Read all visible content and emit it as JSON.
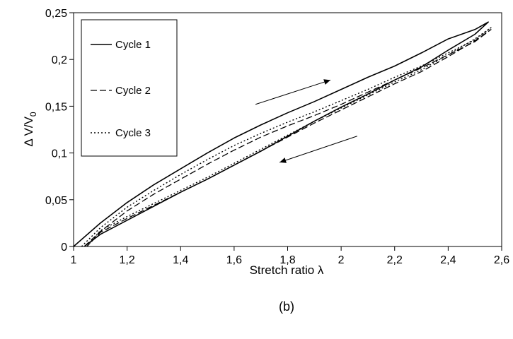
{
  "chart_data": {
    "type": "line",
    "title": "",
    "panel_label": "(b)",
    "xlabel": "Stretch ratio λ",
    "ylabel_main": "Δ V/V",
    "ylabel_sub": "0",
    "xlim": [
      1,
      2.6
    ],
    "ylim": [
      0,
      0.25
    ],
    "x_ticks": [
      1,
      1.2,
      1.4,
      1.6,
      1.8,
      2,
      2.2,
      2.4,
      2.6
    ],
    "x_tick_labels": [
      "1",
      "1,2",
      "1,4",
      "1,6",
      "1,8",
      "2",
      "2,2",
      "2,4",
      "2,6"
    ],
    "y_ticks": [
      0,
      0.05,
      0.1,
      0.15,
      0.2,
      0.25
    ],
    "y_tick_labels": [
      "0",
      "0,05",
      "0,1",
      "0,15",
      "0,2",
      "0,25"
    ],
    "grid": false,
    "legend_position": "top-left",
    "series": [
      {
        "name": "Cycle 1",
        "dash": "solid",
        "color": "#000000",
        "x": [
          1.0,
          1.1,
          1.2,
          1.3,
          1.4,
          1.5,
          1.6,
          1.7,
          1.8,
          1.9,
          2.0,
          2.1,
          2.2,
          2.3,
          2.4,
          2.5,
          2.55,
          2.5,
          2.4,
          2.3,
          2.2,
          2.1,
          2.0,
          1.9,
          1.8,
          1.7,
          1.6,
          1.5,
          1.4,
          1.3,
          1.2,
          1.1,
          1.04
        ],
        "y": [
          0.0,
          0.025,
          0.047,
          0.066,
          0.083,
          0.1,
          0.116,
          0.13,
          0.143,
          0.155,
          0.168,
          0.181,
          0.193,
          0.207,
          0.222,
          0.232,
          0.24,
          0.227,
          0.21,
          0.192,
          0.178,
          0.163,
          0.149,
          0.134,
          0.118,
          0.102,
          0.087,
          0.072,
          0.058,
          0.043,
          0.028,
          0.013,
          0.0
        ]
      },
      {
        "name": "Cycle 2",
        "dash": "dashed",
        "color": "#000000",
        "x": [
          1.04,
          1.1,
          1.2,
          1.3,
          1.4,
          1.5,
          1.6,
          1.7,
          1.8,
          1.9,
          2.0,
          2.1,
          2.2,
          2.3,
          2.4,
          2.5,
          2.56,
          2.5,
          2.4,
          2.3,
          2.2,
          2.1,
          2.0,
          1.9,
          1.8,
          1.7,
          1.6,
          1.5,
          1.4,
          1.3,
          1.2,
          1.1,
          1.05
        ],
        "y": [
          0.0,
          0.016,
          0.038,
          0.056,
          0.072,
          0.088,
          0.103,
          0.117,
          0.129,
          0.14,
          0.152,
          0.165,
          0.178,
          0.191,
          0.205,
          0.219,
          0.232,
          0.22,
          0.203,
          0.187,
          0.174,
          0.16,
          0.146,
          0.132,
          0.117,
          0.102,
          0.087,
          0.072,
          0.058,
          0.044,
          0.03,
          0.015,
          0.0
        ]
      },
      {
        "name": "Cycle 3",
        "dash": "dotted",
        "color": "#000000",
        "x": [
          1.03,
          1.1,
          1.2,
          1.3,
          1.4,
          1.5,
          1.6,
          1.7,
          1.8,
          1.9,
          2.0,
          2.1,
          2.2,
          2.3,
          2.4,
          2.5,
          2.56,
          2.5,
          2.4,
          2.3,
          2.2,
          2.1,
          2.0,
          1.9,
          1.8,
          1.7,
          1.6,
          1.5,
          1.4,
          1.3,
          1.2,
          1.1,
          1.05
        ],
        "y": [
          0.0,
          0.02,
          0.042,
          0.06,
          0.077,
          0.093,
          0.108,
          0.121,
          0.133,
          0.144,
          0.156,
          0.168,
          0.181,
          0.193,
          0.207,
          0.221,
          0.234,
          0.222,
          0.205,
          0.189,
          0.176,
          0.162,
          0.148,
          0.134,
          0.119,
          0.104,
          0.089,
          0.074,
          0.06,
          0.046,
          0.032,
          0.017,
          0.0
        ]
      }
    ],
    "annotations": [
      {
        "type": "arrow",
        "direction": "up-right",
        "meaning": "loading",
        "from": [
          1.68,
          0.152
        ],
        "to": [
          1.96,
          0.178
        ]
      },
      {
        "type": "arrow",
        "direction": "down-left",
        "meaning": "unloading",
        "from": [
          2.06,
          0.118
        ],
        "to": [
          1.77,
          0.09
        ]
      }
    ]
  }
}
